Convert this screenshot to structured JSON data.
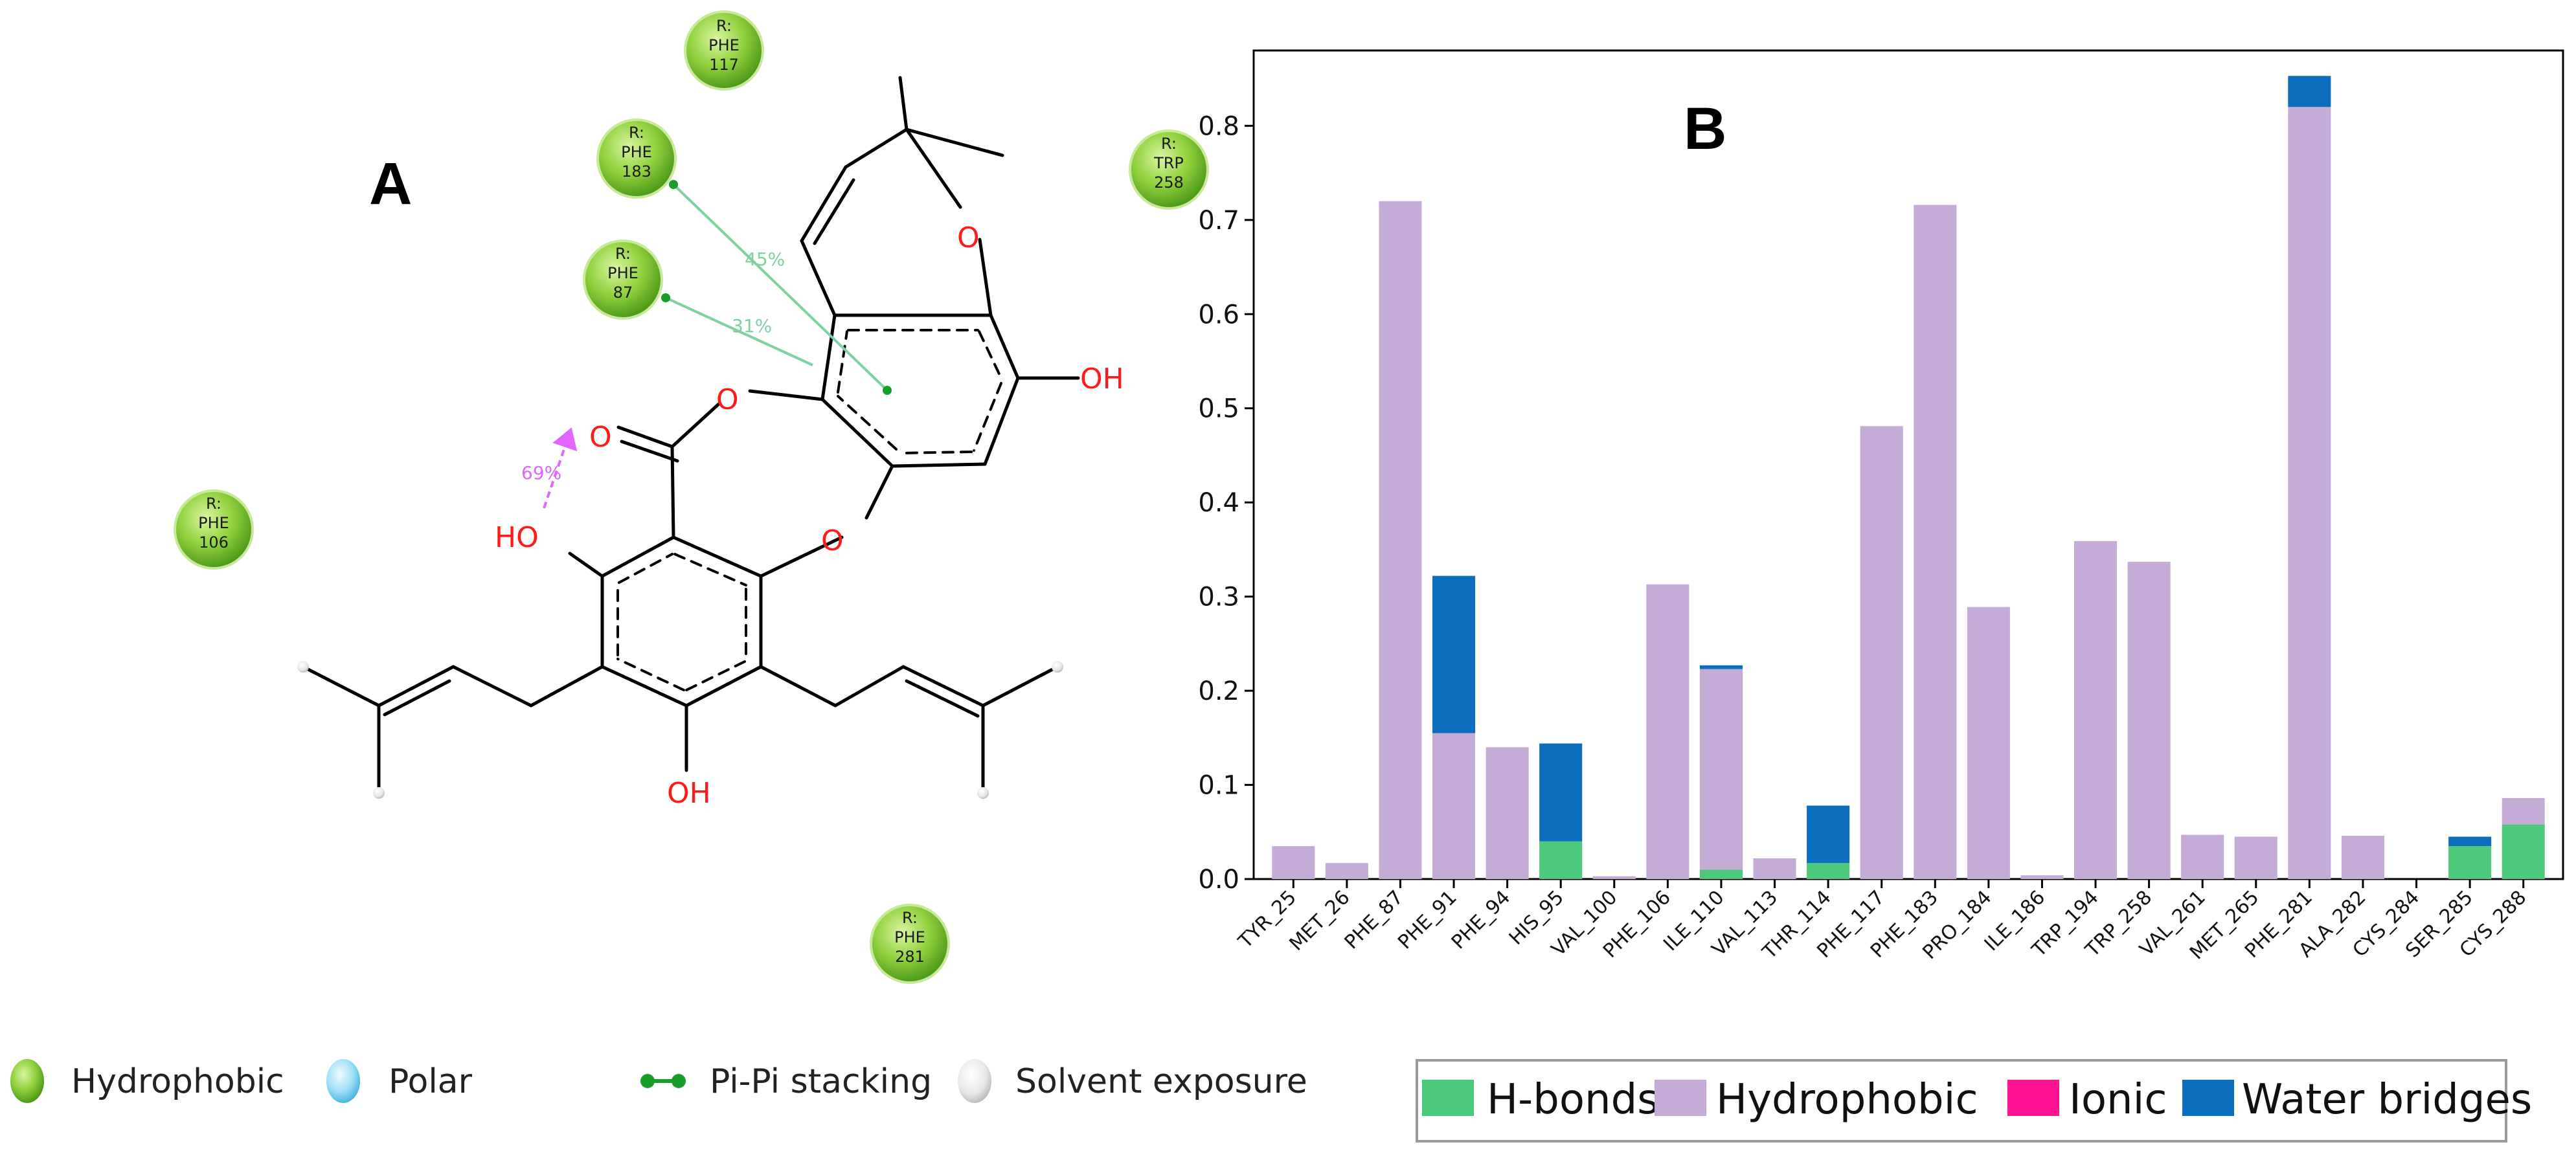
{
  "panel_a": {
    "label": "A",
    "atom_labels": [
      {
        "id": "o-pyran",
        "text": "O"
      },
      {
        "id": "oh-right",
        "text": "OH"
      },
      {
        "id": "o-ester",
        "text": "O"
      },
      {
        "id": "o-carbonyl",
        "text": "O"
      },
      {
        "id": "o-ether",
        "text": "O"
      },
      {
        "id": "oh-left",
        "text": "HO"
      },
      {
        "id": "oh-bottom",
        "text": "OH"
      }
    ],
    "residues": [
      {
        "id": "phe117",
        "lines": [
          "R:",
          "PHE",
          "117"
        ],
        "type": "hydrophobic"
      },
      {
        "id": "phe183",
        "lines": [
          "R:",
          "PHE",
          "183"
        ],
        "type": "hydrophobic"
      },
      {
        "id": "phe87",
        "lines": [
          "R:",
          "PHE",
          "87"
        ],
        "type": "hydrophobic"
      },
      {
        "id": "trp258",
        "lines": [
          "R:",
          "TRP",
          "258"
        ],
        "type": "hydrophobic"
      },
      {
        "id": "phe106",
        "lines": [
          "R:",
          "PHE",
          "106"
        ],
        "type": "hydrophobic"
      },
      {
        "id": "phe281",
        "lines": [
          "R:",
          "PHE",
          "281"
        ],
        "type": "hydrophobic"
      }
    ],
    "interactions": [
      {
        "id": "phe183-pipi",
        "text": "45%",
        "kind": "pi-pi",
        "color": "#7fd1a0"
      },
      {
        "id": "phe87-pipi",
        "text": "31%",
        "kind": "pi-pi",
        "color": "#7fd1a0"
      },
      {
        "id": "hbond-intra",
        "text": "69%",
        "kind": "h-bond",
        "color": "#e066ff"
      }
    ],
    "legend": [
      {
        "id": "hydrophobic",
        "text": "Hydrophobic",
        "icon": "green-sphere-icon",
        "color": "#7ac943"
      },
      {
        "id": "polar",
        "text": "Polar",
        "icon": "cyan-sphere-icon",
        "color": "#5bc8f0"
      },
      {
        "id": "pipi",
        "text": "Pi-Pi stacking",
        "icon": "dumbbell-icon",
        "color": "#1a9e2a"
      },
      {
        "id": "solvent",
        "text": "Solvent exposure",
        "icon": "grey-sphere-icon",
        "color": "#cccccc"
      }
    ]
  },
  "chart_data": {
    "type": "bar",
    "panel_label": "B",
    "categories": [
      "TYR_25",
      "MET_26",
      "PHE_87",
      "PHE_91",
      "PHE_94",
      "HIS_95",
      "VAL_100",
      "PHE_106",
      "ILE_110",
      "VAL_113",
      "THR_114",
      "PHE_117",
      "PHE_183",
      "PRO_184",
      "ILE_186",
      "TRP_194",
      "TRP_258",
      "VAL_261",
      "MET_265",
      "PHE_281",
      "ALA_282",
      "CYS_284",
      "SER_285",
      "CYS_288"
    ],
    "stacked": true,
    "series": [
      {
        "name": "H-bonds",
        "color": "#4cc97a",
        "values": [
          0,
          0,
          0,
          0,
          0,
          0.04,
          0,
          0,
          0.01,
          0,
          0.017,
          0,
          0,
          0,
          0,
          0,
          0,
          0,
          0,
          0,
          0,
          0,
          0.035,
          0.058
        ]
      },
      {
        "name": "Hydrophobic",
        "color": "#c4acd6",
        "values": [
          0.035,
          0.017,
          0.72,
          0.155,
          0.14,
          0,
          0.003,
          0.313,
          0.213,
          0.022,
          0,
          0.481,
          0.716,
          0.289,
          0.004,
          0.359,
          0.337,
          0.047,
          0.045,
          0.82,
          0.046,
          0,
          0,
          0.028
        ]
      },
      {
        "name": "Ionic",
        "color": "#ff1493",
        "values": [
          0,
          0,
          0,
          0,
          0,
          0,
          0,
          0,
          0,
          0,
          0,
          0,
          0,
          0,
          0,
          0,
          0,
          0,
          0,
          0,
          0,
          0,
          0,
          0
        ]
      },
      {
        "name": "Water bridges",
        "color": "#0d6ebd",
        "values": [
          0,
          0,
          0,
          0.167,
          0,
          0.104,
          0,
          0,
          0.004,
          0,
          0.061,
          0,
          0,
          0,
          0,
          0,
          0,
          0,
          0,
          0.033,
          0,
          0,
          0.01,
          0
        ]
      }
    ],
    "ylim": [
      0,
      0.88
    ],
    "yticks": [
      "0.0",
      "0.1",
      "0.2",
      "0.3",
      "0.4",
      "0.5",
      "0.6",
      "0.7",
      "0.8"
    ],
    "xlabel": "",
    "ylabel": "",
    "legend_position": "bottom"
  }
}
